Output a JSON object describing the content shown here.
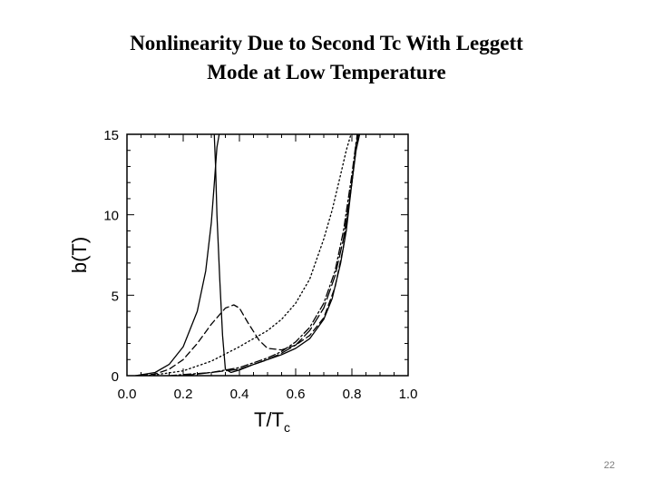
{
  "slide": {
    "title_line1": "Nonlinearity Due to Second Tc With Leggett",
    "title_line2": "Mode at Low Temperature",
    "page_number": "22"
  },
  "chart_data": {
    "type": "line",
    "xlabel": "T/T",
    "xlabel_sub": "c",
    "ylabel": "b(T)",
    "xlim": [
      0.0,
      1.0
    ],
    "ylim": [
      0,
      15
    ],
    "xticks": [
      0.0,
      0.2,
      0.4,
      0.6,
      0.8,
      1.0
    ],
    "xtick_labels": [
      "0.0",
      "0.2",
      "0.4",
      "0.6",
      "0.8",
      "1.0"
    ],
    "yticks": [
      0,
      5,
      10,
      15
    ],
    "ytick_labels": [
      "0",
      "5",
      "10",
      "15"
    ],
    "grid": false,
    "legend": false,
    "series": [
      {
        "style": "solid",
        "x": [
          0.03,
          0.1,
          0.15,
          0.2,
          0.25,
          0.28,
          0.3,
          0.31,
          0.32,
          0.33
        ],
        "y": [
          0.0,
          0.2,
          0.7,
          1.8,
          4.0,
          6.5,
          9.5,
          11.8,
          14.2,
          15.2
        ]
      },
      {
        "style": "solid",
        "x": [
          0.31,
          0.315,
          0.32,
          0.33,
          0.34,
          0.35,
          0.37,
          0.4,
          0.45,
          0.5,
          0.55,
          0.6,
          0.65,
          0.7,
          0.73,
          0.76,
          0.78,
          0.8,
          0.815,
          0.83
        ],
        "y": [
          15.2,
          13.0,
          10.0,
          6.0,
          2.5,
          0.4,
          0.2,
          0.35,
          0.7,
          1.0,
          1.3,
          1.7,
          2.3,
          3.5,
          4.8,
          7.0,
          9.0,
          12.0,
          14.0,
          15.2
        ]
      },
      {
        "style": "dashed",
        "x": [
          0.05,
          0.1,
          0.15,
          0.2,
          0.25,
          0.3,
          0.35,
          0.38,
          0.4,
          0.43,
          0.47,
          0.5,
          0.55,
          0.6,
          0.65,
          0.7,
          0.74,
          0.77,
          0.8,
          0.82
        ],
        "y": [
          0.0,
          0.1,
          0.4,
          1.0,
          2.0,
          3.2,
          4.2,
          4.4,
          4.2,
          3.3,
          2.2,
          1.7,
          1.6,
          1.9,
          2.5,
          3.6,
          5.5,
          8.0,
          12.0,
          15.2
        ]
      },
      {
        "style": "dotted",
        "x": [
          0.05,
          0.1,
          0.2,
          0.3,
          0.4,
          0.5,
          0.55,
          0.6,
          0.65,
          0.7,
          0.73,
          0.76,
          0.78,
          0.8,
          0.82
        ],
        "y": [
          0.0,
          0.05,
          0.3,
          0.9,
          1.8,
          2.8,
          3.5,
          4.5,
          6.0,
          8.5,
          10.3,
          12.5,
          14.0,
          15.2,
          15.2
        ]
      },
      {
        "style": "dashdot",
        "x": [
          0.15,
          0.3,
          0.4,
          0.5,
          0.55,
          0.6,
          0.65,
          0.7,
          0.74,
          0.77,
          0.8,
          0.815,
          0.825
        ],
        "y": [
          0.0,
          0.2,
          0.5,
          1.1,
          1.5,
          2.1,
          3.0,
          4.5,
          6.5,
          9.0,
          12.5,
          14.5,
          15.2
        ]
      },
      {
        "style": "longdash",
        "x": [
          0.2,
          0.4,
          0.5,
          0.55,
          0.6,
          0.65,
          0.7,
          0.74,
          0.77,
          0.8,
          0.815,
          0.825
        ],
        "y": [
          0.0,
          0.4,
          1.0,
          1.4,
          1.9,
          2.8,
          4.2,
          6.2,
          8.5,
          12.0,
          14.2,
          15.2
        ]
      }
    ]
  }
}
